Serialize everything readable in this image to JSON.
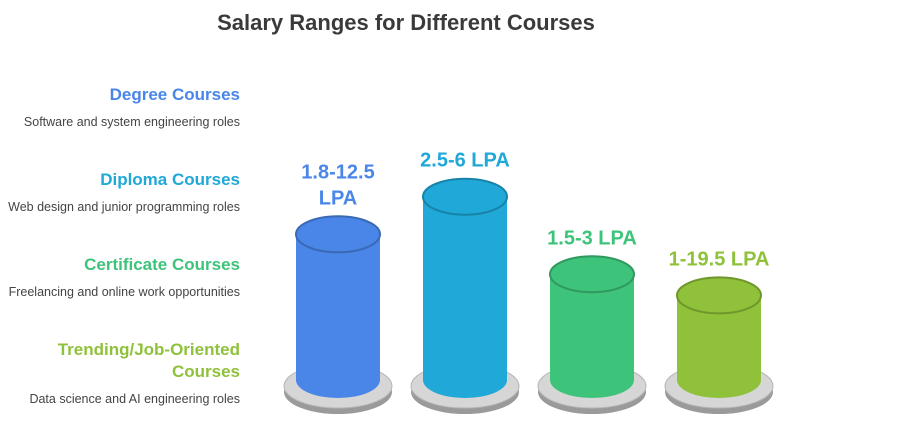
{
  "chart_data": {
    "type": "bar",
    "title": "Salary Ranges for Different Courses",
    "categories": [
      "Degree Courses",
      "Diploma Courses",
      "Certificate Courses",
      "Trending/Job-Oriented Courses"
    ],
    "descriptions": [
      "Software and system engineering roles",
      "Web design and junior programming roles",
      "Freelancing and online work opportunities",
      "Data science and AI engineering roles"
    ],
    "labels": [
      [
        "1.8-12.5",
        "LPA"
      ],
      [
        "2.5-6 LPA"
      ],
      [
        "1.5-3 LPA"
      ],
      [
        "1-19.5 LPA"
      ]
    ],
    "values": [
      0.62,
      0.78,
      0.45,
      0.36
    ],
    "colors": [
      "#4a86e8",
      "#1fa8d8",
      "#3ec47a",
      "#8fc13a"
    ]
  }
}
